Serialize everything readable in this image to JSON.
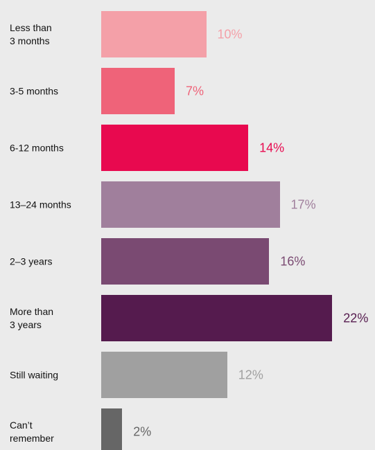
{
  "chart_data": {
    "type": "bar",
    "orientation": "horizontal",
    "categories": [
      "Less than\n3 months",
      "3-5 months",
      "6-12 months",
      "13–24 months",
      "2–3 years",
      "More than\n 3 years",
      "Still waiting",
      "Can’t\nremember"
    ],
    "values": [
      10,
      7,
      14,
      17,
      16,
      22,
      12,
      2
    ],
    "value_labels": [
      "10%",
      "7%",
      "14%",
      "17%",
      "16%",
      "22%",
      "12%",
      "2%"
    ],
    "colors": [
      "#f4a0a8",
      "#ef6379",
      "#e8094f",
      "#a07f9c",
      "#7a4a72",
      "#551b4e",
      "#a0a0a0",
      "#666666"
    ]
  }
}
